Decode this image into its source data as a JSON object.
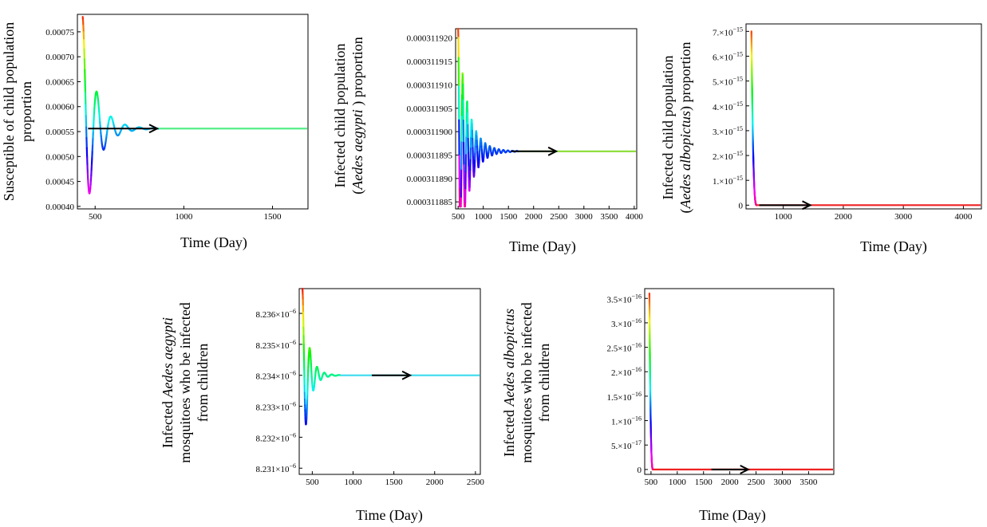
{
  "chart_data": [
    {
      "type": "line",
      "ylabel": [
        "Susceptible  of  child  population",
        "proportion"
      ],
      "xlabel": "Time  (Day)",
      "xlim": [
        400,
        1700
      ],
      "xticks": [
        {
          "v": 500,
          "t": "500"
        },
        {
          "v": 1000,
          "t": "1000"
        },
        {
          "v": 1500,
          "t": "1500"
        }
      ],
      "ylim": [
        0.000395,
        0.000785
      ],
      "yticks": [
        {
          "v": 0.0004,
          "t": "0.00040"
        },
        {
          "v": 0.00045,
          "t": "0.00045"
        },
        {
          "v": 0.0005,
          "t": "0.00050"
        },
        {
          "v": 0.00055,
          "t": "0.00055"
        },
        {
          "v": 0.0006,
          "t": "0.00060"
        },
        {
          "v": 0.00065,
          "t": "0.00065"
        },
        {
          "v": 0.0007,
          "t": "0.00070"
        },
        {
          "v": 0.00075,
          "t": "0.00075"
        }
      ],
      "equilibrium": 0.000556,
      "curve": {
        "t0": 430,
        "y0": 0.00078,
        "ymin": 0.0004,
        "decay": 0.014,
        "period": 80
      },
      "eq_color": "#55ee88",
      "arrow": {
        "x1": 460,
        "x2": 850
      },
      "series": [
        {
          "values": [
            [
              430,
              0.00078
            ],
            [
              480,
              0.000495
            ],
            [
              520,
              0.000572
            ],
            [
              560,
              0.000547
            ],
            [
              600,
              0.000558
            ],
            [
              1700,
              0.000556
            ]
          ]
        }
      ]
    },
    {
      "type": "line",
      "ylabel": [
        "Infected  child  population",
        "(Aedes aegypti ) proportion"
      ],
      "xlabel": "Time  (Day)",
      "xlim": [
        450,
        4050
      ],
      "xticks": [
        {
          "v": 500,
          "t": "500"
        },
        {
          "v": 1000,
          "t": "1000"
        },
        {
          "v": 1500,
          "t": "1500"
        },
        {
          "v": 2000,
          "t": "2000"
        },
        {
          "v": 2500,
          "t": "2500"
        },
        {
          "v": 3000,
          "t": "3000"
        },
        {
          "v": 3500,
          "t": "3500"
        },
        {
          "v": 4000,
          "t": "4000"
        }
      ],
      "ylim": [
        0.0003118835,
        0.000311922
      ],
      "yticks": [
        {
          "v": 0.000311885,
          "t": "0.000311885"
        },
        {
          "v": 0.00031189,
          "t": "0.000311890"
        },
        {
          "v": 0.000311895,
          "t": "0.000311895"
        },
        {
          "v": 0.0003119,
          "t": "0.000311900"
        },
        {
          "v": 0.000311905,
          "t": "0.000311905"
        },
        {
          "v": 0.00031191,
          "t": "0.000311910"
        },
        {
          "v": 0.000311915,
          "t": "0.000311915"
        },
        {
          "v": 0.00031192,
          "t": "0.000311920"
        }
      ],
      "equilibrium": 0.0003118958,
      "curve": {
        "t0": 500,
        "y0": 0.000311922,
        "ymin": 0.000311884,
        "decay": 0.005,
        "period": 90
      },
      "eq_color": "#88dd33",
      "arrow": {
        "x1": 1550,
        "x2": 2450
      },
      "series": [
        {
          "values": [
            [
              500,
              0.000311922
            ],
            [
              560,
              0.000311884
            ],
            [
              700,
              0.0003119
            ],
            [
              900,
              0.000311897
            ],
            [
              1400,
              0.0003118958
            ],
            [
              4000,
              0.0003118958
            ]
          ]
        }
      ]
    },
    {
      "type": "line",
      "ylabel": [
        "Infected  child  population",
        "(Aedes albopictus) proportion"
      ],
      "xlabel": "Time  (Day)",
      "xlim": [
        380,
        4300
      ],
      "xticks": [
        {
          "v": 1000,
          "t": "1000"
        },
        {
          "v": 2000,
          "t": "2000"
        },
        {
          "v": 3000,
          "t": "3000"
        },
        {
          "v": 4000,
          "t": "4000"
        }
      ],
      "ylim": [
        -1.5e-16,
        7.3e-15
      ],
      "yticks": [
        {
          "v": 0,
          "t": "0"
        },
        {
          "v": 1e-15,
          "t": "1.×10",
          "e": "−15"
        },
        {
          "v": 2e-15,
          "t": "2.×10",
          "e": "−15"
        },
        {
          "v": 3e-15,
          "t": "3.×10",
          "e": "−15"
        },
        {
          "v": 4e-15,
          "t": "4.×10",
          "e": "−15"
        },
        {
          "v": 5e-15,
          "t": "5.×10",
          "e": "−15"
        },
        {
          "v": 6e-15,
          "t": "6.×10",
          "e": "−15"
        },
        {
          "v": 7e-15,
          "t": "7.×10",
          "e": "−15"
        }
      ],
      "equilibrium": 0,
      "curve": {
        "t0": 470,
        "y0": 7e-15,
        "tend": 560
      },
      "eq_color": "#ee2222",
      "arrow": {
        "x1": 600,
        "x2": 1450
      },
      "series": [
        {
          "values": [
            [
              470,
              7e-15
            ],
            [
              520,
              1e-15
            ],
            [
              560,
              0
            ],
            [
              4300,
              0
            ]
          ]
        }
      ]
    },
    {
      "type": "line",
      "ylabel": [
        "Infected  Aedes aegypti",
        "mosquitoes who be infected",
        "from children"
      ],
      "xlabel": "Time  (Day)",
      "xlim": [
        340,
        2560
      ],
      "xticks": [
        {
          "v": 500,
          "t": "500"
        },
        {
          "v": 1000,
          "t": "1000"
        },
        {
          "v": 1500,
          "t": "1500"
        },
        {
          "v": 2000,
          "t": "2000"
        },
        {
          "v": 2500,
          "t": "2500"
        }
      ],
      "ylim": [
        8.2308e-06,
        8.2368e-06
      ],
      "yticks": [
        {
          "v": 8.231e-06,
          "t": "8.231×10",
          "e": "−6"
        },
        {
          "v": 8.232e-06,
          "t": "8.232×10",
          "e": "−6"
        },
        {
          "v": 8.233e-06,
          "t": "8.233×10",
          "e": "−6"
        },
        {
          "v": 8.234e-06,
          "t": "8.234×10",
          "e": "−6"
        },
        {
          "v": 8.235e-06,
          "t": "8.235×10",
          "e": "−6"
        },
        {
          "v": 8.236e-06,
          "t": "8.236×10",
          "e": "−6"
        }
      ],
      "equilibrium": 8.234e-06,
      "curve": {
        "t0": 380,
        "y0": 8.2368e-06,
        "ymin": 8.2311e-06,
        "decay": 0.013,
        "period": 90
      },
      "eq_color": "#44ddee",
      "arrow": {
        "x1": 1230,
        "x2": 1700
      },
      "series": [
        {
          "values": [
            [
              380,
              8.2368e-06
            ],
            [
              420,
              8.2311e-06
            ],
            [
              470,
              8.2348e-06
            ],
            [
              600,
              8.2341e-06
            ],
            [
              1000,
              8.234e-06
            ],
            [
              2500,
              8.234e-06
            ]
          ]
        }
      ]
    },
    {
      "type": "line",
      "ylabel": [
        "Infected  Aedes albopictus",
        "mosquitoes who be infected",
        "from children"
      ],
      "xlabel": "Time  (Day)",
      "xlim": [
        380,
        3980
      ],
      "xticks": [
        {
          "v": 500,
          "t": "500"
        },
        {
          "v": 1000,
          "t": "1000"
        },
        {
          "v": 1500,
          "t": "1500"
        },
        {
          "v": 2000,
          "t": "2000"
        },
        {
          "v": 2500,
          "t": "2500"
        },
        {
          "v": 3000,
          "t": "3000"
        },
        {
          "v": 3500,
          "t": "3500"
        }
      ],
      "ylim": [
        -1e-17,
        3.7e-16
      ],
      "yticks": [
        {
          "v": 0,
          "t": "0"
        },
        {
          "v": 5e-17,
          "t": "5.×10",
          "e": "−17"
        },
        {
          "v": 1e-16,
          "t": "1.×10",
          "e": "−16"
        },
        {
          "v": 1.5e-16,
          "t": "1.5×10",
          "e": "−16"
        },
        {
          "v": 2e-16,
          "t": "2.×10",
          "e": "−16"
        },
        {
          "v": 2.5e-16,
          "t": "2.5×10",
          "e": "−16"
        },
        {
          "v": 3e-16,
          "t": "3.×10",
          "e": "−16"
        },
        {
          "v": 3.5e-16,
          "t": "3.5×10",
          "e": "−16"
        }
      ],
      "equilibrium": 0,
      "curve": {
        "t0": 470,
        "y0": 3.6e-16,
        "tend": 540
      },
      "eq_color": "#ee2222",
      "arrow": {
        "x1": 1650,
        "x2": 2350
      },
      "series": [
        {
          "values": [
            [
              470,
              3.6e-16
            ],
            [
              500,
              5e-17
            ],
            [
              540,
              0
            ],
            [
              3980,
              0
            ]
          ]
        }
      ]
    }
  ]
}
